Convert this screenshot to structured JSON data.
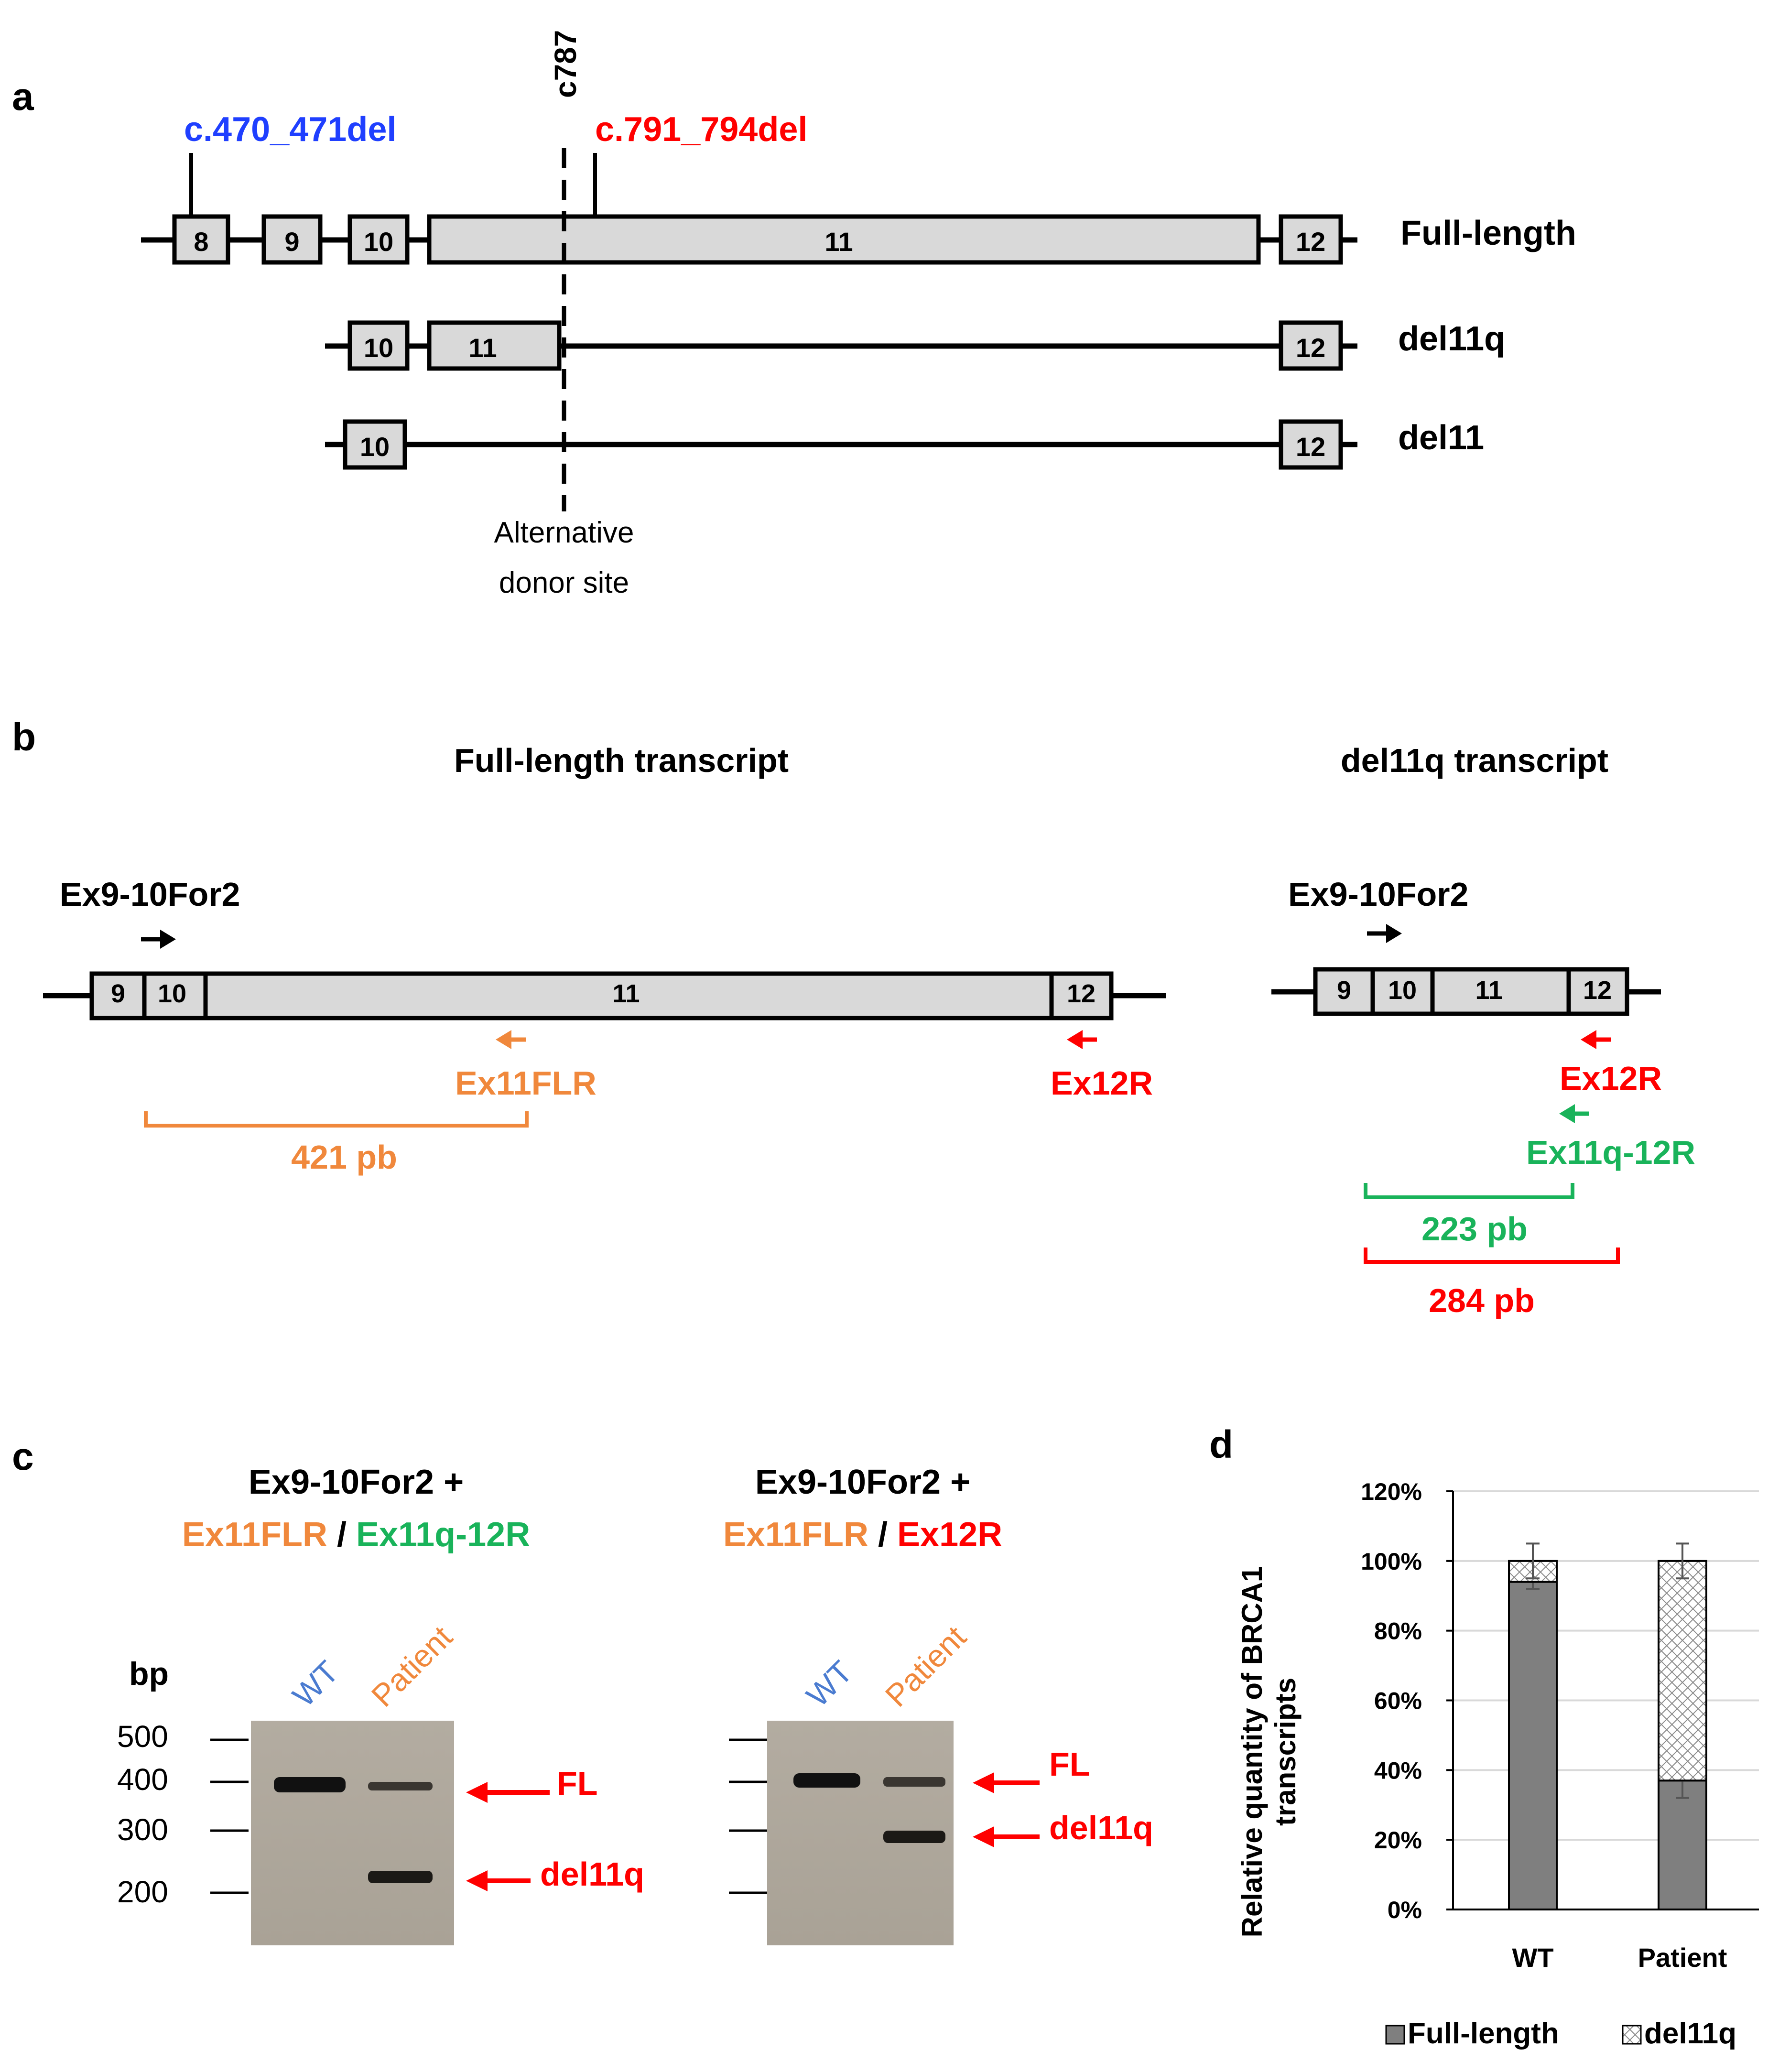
{
  "panel_a": {
    "label": "a",
    "mut_blue": "c.470_471del",
    "mut_red": "c.791_794del",
    "c787": "c787",
    "rows": [
      {
        "name": "Full-length"
      },
      {
        "name": "del11q"
      },
      {
        "name": "del11"
      }
    ],
    "exons": {
      "e8": "8",
      "e9": "9",
      "e10": "10",
      "e11": "11",
      "e12": "12"
    },
    "alt_line1": "Alternative",
    "alt_line2": "donor site"
  },
  "panel_b": {
    "label": "b",
    "fl_title": "Full-length transcript",
    "dq_title": "del11q transcript",
    "primer_for": "Ex9-10For2",
    "primer_flr": "Ex11FLR",
    "primer_12r": "Ex12R",
    "primer_q12r": "Ex11q-12R",
    "size_421": "421 pb",
    "size_223": "223 pb",
    "size_284": "284 pb",
    "exons": {
      "e9": "9",
      "e10": "10",
      "e11": "11",
      "e12": "12"
    }
  },
  "panel_c": {
    "label": "c",
    "gel1_title1": "Ex9-10For2 +",
    "gel1_p1": "Ex11FLR",
    "gel1_sep": " / ",
    "gel1_p2": "Ex11q-12R",
    "gel2_title1": "Ex9-10For2 +",
    "gel2_p1": "Ex11FLR",
    "gel2_sep": " / ",
    "gel2_p2": "Ex12R",
    "bp": "bp",
    "ladder": [
      "500",
      "400",
      "300",
      "200"
    ],
    "lane_wt": "WT",
    "lane_patient": "Patient",
    "band_fl": "FL",
    "band_dq": "del11q"
  },
  "colors": {
    "blue": "#1f3fff",
    "red": "#ff0000",
    "orange": "#f0883c",
    "green": "#19b35a",
    "wt_blue": "#4a7bd0",
    "exon_fill": "#d9d9d9",
    "bar_dark": "#7f7f7f"
  },
  "chart_data": {
    "type": "bar",
    "stacked": true,
    "label": "d",
    "categories": [
      "WT",
      "Patient"
    ],
    "series": [
      {
        "name": "Full-length",
        "values": [
          94,
          37
        ],
        "errors": [
          2,
          5
        ],
        "fill": "solid-gray"
      },
      {
        "name": "del11q",
        "values": [
          6,
          63
        ],
        "errors": [
          5,
          5
        ],
        "fill": "crosshatch"
      }
    ],
    "ylabel_line1": "Relative quantity of BRCA1",
    "ylabel_line2": "transcripts",
    "ylim": [
      0,
      120
    ],
    "yticks": [
      "0%",
      "20%",
      "40%",
      "60%",
      "80%",
      "100%",
      "120%"
    ],
    "grid": true,
    "legend": "bottom"
  }
}
